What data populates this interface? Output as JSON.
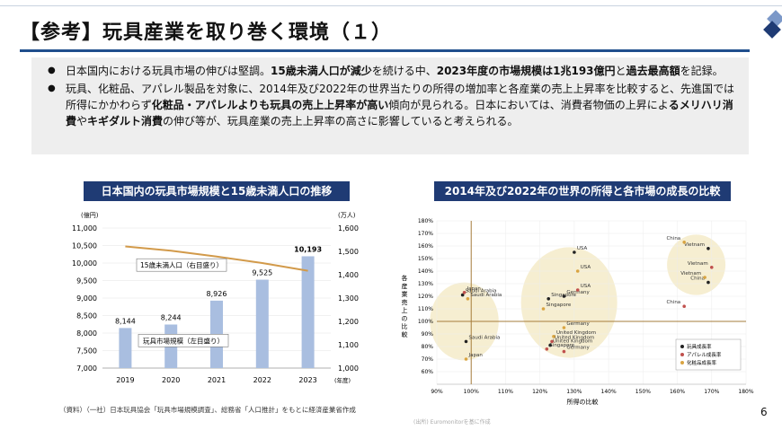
{
  "slide": {
    "title": "【参考】玩具産業を取り巻く環境（１）",
    "page_number": "6",
    "bullets": [
      [
        {
          "t": "日本国内における玩具市場の伸びは堅調。",
          "b": false
        },
        {
          "t": "15歳未満人口が減少",
          "b": true
        },
        {
          "t": "を続ける中、",
          "b": false
        },
        {
          "t": "2023年度の市場規模は1兆193億円",
          "b": true
        },
        {
          "t": "と",
          "b": false
        },
        {
          "t": "過去最高額",
          "b": true
        },
        {
          "t": "を記録。",
          "b": false
        }
      ],
      [
        {
          "t": "玩具、化粧品、アパレル製品を対象に、2014年及び2022年の世界当たりの所得の増加率と各産業の売上上昇率を比較すると、先進国では所得にかかわらず",
          "b": false
        },
        {
          "t": "化粧品・アパレルよりも玩具の売上上昇率が高い",
          "b": true
        },
        {
          "t": "傾向が見られる。日本においては、消費者物価の上昇によ",
          "b": false
        },
        {
          "t": "るメリハリ消費",
          "b": true
        },
        {
          "t": "や",
          "b": false
        },
        {
          "t": "キギダルト消費",
          "b": true
        },
        {
          "t": "の伸び等が、玩具産業の売上上昇率の高さに影響していると考えられる。",
          "b": false
        }
      ]
    ],
    "bullet_marker": "●"
  },
  "chart_data": [
    {
      "type": "bar",
      "panel_title": "日本国内の玩具市場規模と15歳未満人口の推移",
      "categories": [
        "2019",
        "2020",
        "2021",
        "2022",
        "2023"
      ],
      "xlabel_unit": "(年度)",
      "left_axis": {
        "unit": "(億円)",
        "min": 7000,
        "max": 11000,
        "ticks": [
          "7,000",
          "7,500",
          "8,000",
          "8,500",
          "9,000",
          "9,500",
          "10,000",
          "10,500",
          "11,000"
        ]
      },
      "right_axis": {
        "unit": "(万人)",
        "min": 1000,
        "max": 1600,
        "ticks": [
          "1,000",
          "1,100",
          "1,200",
          "1,300",
          "1,400",
          "1,500",
          "1,600"
        ]
      },
      "series": [
        {
          "name": "玩具市場規模（左目盛り）",
          "kind": "bar",
          "axis": "left",
          "values": [
            8144,
            8244,
            8926,
            9525,
            10193
          ],
          "labels": [
            "8,144",
            "8,244",
            "8,926",
            "9,525",
            "10,193"
          ],
          "color": "#a9bee0"
        },
        {
          "name": "15歳未満人口（右目盛り）",
          "kind": "line",
          "axis": "right",
          "values": [
            1521,
            1503,
            1478,
            1450,
            1417
          ],
          "color": "#d29a4a"
        }
      ],
      "note": "（資料）（一社）日本玩具協会「玩具市場規模調査」、総務省「人口推計」をもとに経済産業省作成"
    },
    {
      "type": "scatter",
      "panel_title": "2014年及び2022年の世界の所得と各市場の成長の比較",
      "xlabel": "所得の比較",
      "ylabel": "各産業売上の比較",
      "xlim": [
        90,
        180
      ],
      "ylim": [
        50,
        180
      ],
      "xticks": [
        "90%",
        "100%",
        "110%",
        "120%",
        "130%",
        "140%",
        "150%",
        "160%",
        "170%",
        "180%"
      ],
      "yticks": [
        "50%",
        "60%",
        "70%",
        "80%",
        "90%",
        "100%",
        "110%",
        "120%",
        "130%",
        "140%",
        "150%",
        "160%",
        "170%",
        "180%"
      ],
      "legend": {
        "position": "bottom-right",
        "entries": [
          "玩具成長率",
          "アパレル成長率",
          "化粧品成長率"
        ]
      },
      "series": [
        {
          "name": "玩具成長率",
          "color": "#222222",
          "points": [
            {
              "x": 97.5,
              "y": 121,
              "label": "Saudi Arabia"
            },
            {
              "x": 98.5,
              "y": 84,
              "label": "Saudi Arabia"
            },
            {
              "x": 130,
              "y": 155,
              "label": "USA"
            },
            {
              "x": 127,
              "y": 120,
              "label": "Germany"
            },
            {
              "x": 123,
              "y": 81,
              "label": "United Kingdom"
            },
            {
              "x": 122.5,
              "y": 118,
              "label": "Singapore"
            },
            {
              "x": 169,
              "y": 158,
              "label": "Vietnam"
            },
            {
              "x": 169,
              "y": 131,
              "label": "China"
            }
          ]
        },
        {
          "name": "アパレル成長率",
          "color": "#c0504d",
          "points": [
            {
              "x": 98,
              "y": 123,
              "label": "Japan"
            },
            {
              "x": 131,
              "y": 125,
              "label": "USA"
            },
            {
              "x": 127,
              "y": 76,
              "label": "Germany"
            },
            {
              "x": 123.5,
              "y": 84,
              "label": "United Kingdom"
            },
            {
              "x": 122,
              "y": 78,
              "label": "Singapore"
            },
            {
              "x": 170,
              "y": 143,
              "label": "Vietnam"
            },
            {
              "x": 162,
              "y": 112,
              "label": "China"
            }
          ]
        },
        {
          "name": "化粧品成長率",
          "color": "#d9a441",
          "points": [
            {
              "x": 99,
              "y": 118,
              "label": "Saudi Arabia"
            },
            {
              "x": 98.5,
              "y": 70,
              "label": "Japan"
            },
            {
              "x": 131,
              "y": 140,
              "label": "USA"
            },
            {
              "x": 127,
              "y": 95,
              "label": "Germany"
            },
            {
              "x": 124,
              "y": 88,
              "label": "United Kingdom"
            },
            {
              "x": 121,
              "y": 110,
              "label": "Singapore"
            },
            {
              "x": 162,
              "y": 163,
              "label": "China"
            },
            {
              "x": 168,
              "y": 135,
              "label": "Vietnam"
            }
          ]
        }
      ],
      "source": "(出所) Euromonitorを基に作成"
    }
  ]
}
